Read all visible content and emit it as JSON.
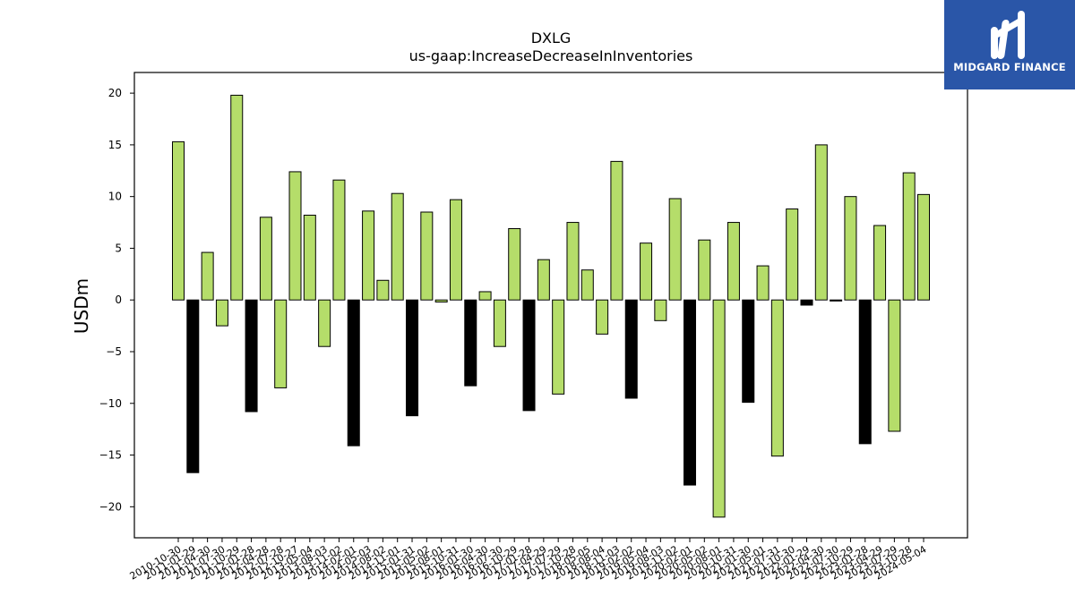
{
  "brand": {
    "name": "MIDGARD FINANCE",
    "bg_color": "#2a56a8",
    "mark_icon": "midgard-logo-icon"
  },
  "colors": {
    "positive": "#b5dd6a",
    "negative": "#000000",
    "bar_edge": "#000000"
  },
  "chart_data": {
    "type": "bar",
    "title": "DXLG",
    "subtitle": "us-gaap:IncreaseDecreaseInInventories",
    "xlabel": "",
    "ylabel": "USDm",
    "ylim": [
      -23,
      22
    ],
    "yticks": [
      20,
      15,
      10,
      5,
      0,
      -5,
      -10,
      -15,
      -20
    ],
    "grid": false,
    "categories": [
      "2010-10-30",
      "2011-01-29",
      "2011-04-30",
      "2011-07-30",
      "2011-10-29",
      "2012-01-28",
      "2012-04-28",
      "2012-07-28",
      "2012-10-27",
      "2013-05-04",
      "2013-08-03",
      "2013-11-02",
      "2014-02-01",
      "2014-05-03",
      "2014-08-02",
      "2014-11-01",
      "2015-01-31",
      "2015-05-02",
      "2015-08-01",
      "2015-10-31",
      "2016-01-30",
      "2016-04-30",
      "2016-07-30",
      "2016-10-29",
      "2017-01-28",
      "2017-04-29",
      "2017-07-29",
      "2017-10-28",
      "2018-05-05",
      "2018-08-04",
      "2018-11-03",
      "2019-02-02",
      "2019-05-04",
      "2019-08-03",
      "2019-11-02",
      "2020-02-01",
      "2020-05-02",
      "2020-08-01",
      "2020-10-31",
      "2021-01-30",
      "2021-05-01",
      "2021-07-31",
      "2021-10-30",
      "2022-01-29",
      "2022-04-30",
      "2022-07-30",
      "2022-10-29",
      "2023-01-28",
      "2023-04-29",
      "2023-07-29",
      "2023-10-28",
      "2024-05-04"
    ],
    "values": [
      15.3,
      -16.7,
      4.6,
      -2.5,
      19.8,
      -10.8,
      8.0,
      -8.5,
      12.4,
      8.2,
      -4.5,
      11.6,
      -14.1,
      8.6,
      1.9,
      10.3,
      -11.2,
      8.5,
      -0.2,
      9.7,
      -8.3,
      0.8,
      -4.5,
      6.9,
      -10.7,
      3.9,
      -9.1,
      7.5,
      2.9,
      -3.3,
      13.4,
      -9.5,
      5.5,
      -2.0,
      9.8,
      -17.9,
      5.8,
      -21.0,
      7.5,
      -9.9,
      3.3,
      -15.1,
      8.8,
      -0.5,
      15.0,
      -0.1,
      10.0,
      -13.9,
      7.2,
      -12.7,
      12.3,
      10.2
    ],
    "bar_color": [
      "g",
      "k",
      "g",
      "g",
      "g",
      "k",
      "g",
      "g",
      "g",
      "g",
      "g",
      "g",
      "k",
      "g",
      "g",
      "g",
      "k",
      "g",
      "g",
      "g",
      "k",
      "g",
      "g",
      "g",
      "k",
      "g",
      "g",
      "g",
      "g",
      "g",
      "g",
      "k",
      "g",
      "g",
      "g",
      "k",
      "g",
      "g",
      "g",
      "k",
      "g",
      "g",
      "g",
      "k",
      "g",
      "k",
      "g",
      "k",
      "g",
      "g",
      "g",
      "g"
    ]
  }
}
